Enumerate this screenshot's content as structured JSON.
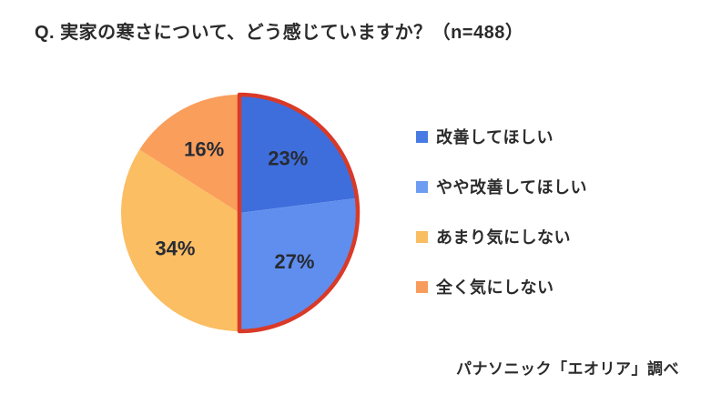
{
  "title": "Q. 実家の寒さについて、どう感じていますか？（n=488）",
  "source": "パナソニック「エオリア」調べ",
  "chart_data": {
    "type": "pie",
    "title": "実家の寒さについて、どう感じていますか？",
    "sample_size_label": "n=488",
    "categories": [
      "改善してほしい",
      "やや改善してほしい",
      "あまり気にしない",
      "全く気にしない"
    ],
    "values": [
      23,
      27,
      34,
      16
    ],
    "unit": "%",
    "labels": [
      "23%",
      "27%",
      "34%",
      "16%"
    ],
    "colors": [
      "#3e6edc",
      "#5f8eee",
      "#fbbe63",
      "#fa9e5c"
    ],
    "legend_colors": [
      "#477ae2",
      "#6e9cf0",
      "#f9bd62",
      "#f89c5d"
    ],
    "label_color": "#272b33",
    "start_angle_deg": 0,
    "direction": "clockwise",
    "legend_position": "right",
    "highlight": {
      "slice_indices": [
        0,
        1
      ],
      "outline_color": "#d93a28",
      "outline_width": 4.5,
      "meaning": "改善してほしい＋やや改善してほしい＝50%"
    }
  }
}
